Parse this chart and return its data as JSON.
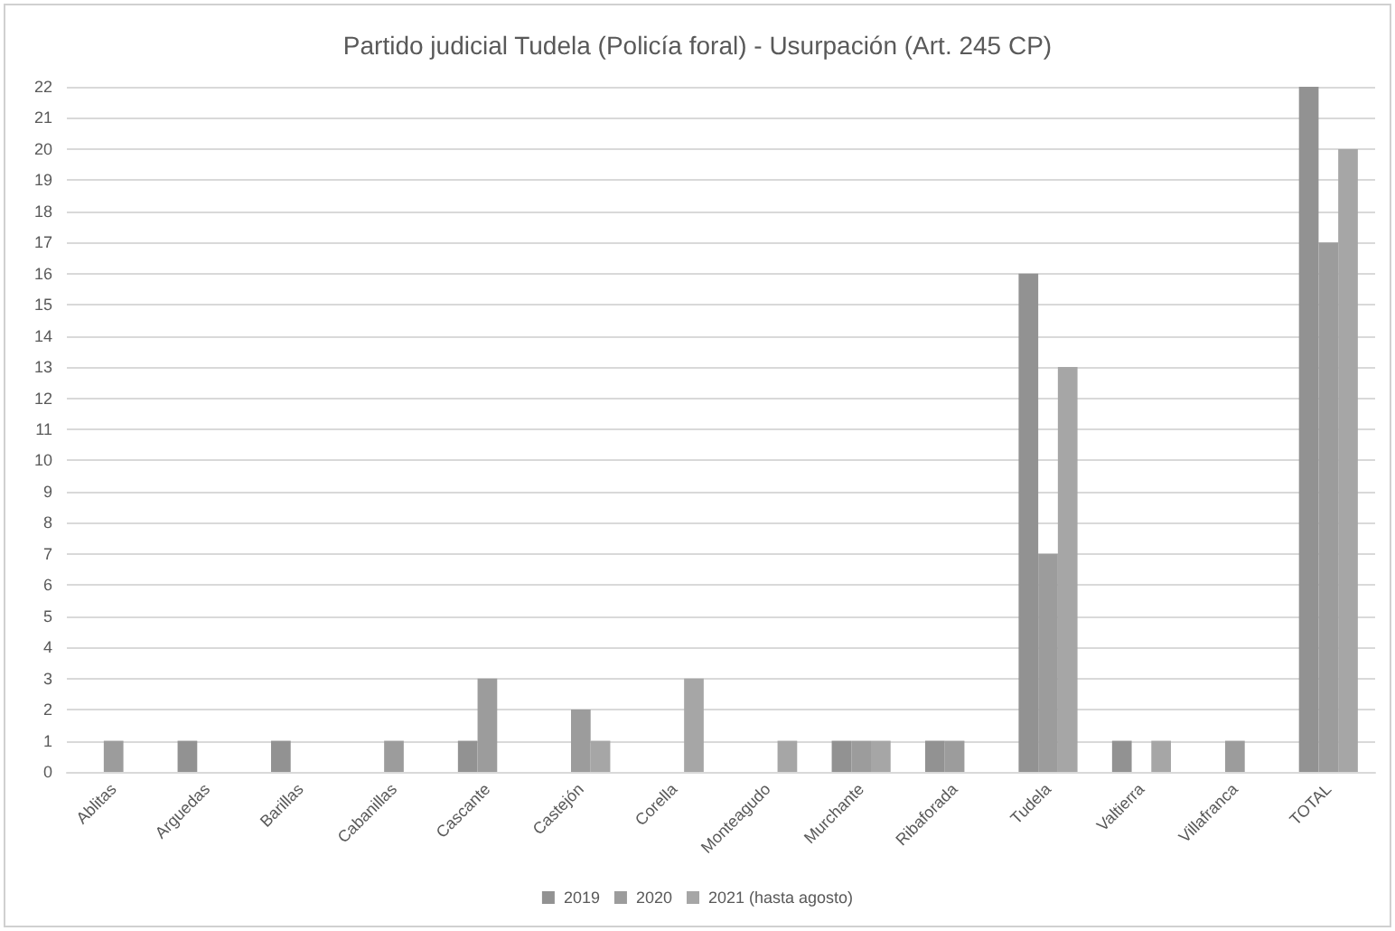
{
  "chart_data": {
    "type": "bar",
    "title": "Partido judicial Tudela (Policía foral) - Usurpación (Art. 245 CP)",
    "categories": [
      "Ablitas",
      "Arguedas",
      "Barillas",
      "Cabanillas",
      "Cascante",
      "Castejón",
      "Corella",
      "Monteagudo",
      "Murchante",
      "Ribaforada",
      "Tudela",
      "Valtierra",
      "Villafranca",
      "TOTAL"
    ],
    "series": [
      {
        "name": "2019",
        "color": "#929292",
        "values": [
          0,
          1,
          1,
          0,
          1,
          0,
          0,
          0,
          1,
          1,
          16,
          1,
          0,
          22
        ]
      },
      {
        "name": "2020",
        "color": "#9c9c9c",
        "values": [
          1,
          0,
          0,
          1,
          3,
          2,
          0,
          0,
          1,
          1,
          7,
          0,
          1,
          17
        ]
      },
      {
        "name": "2021 (hasta agosto)",
        "color": "#a6a6a6",
        "values": [
          0,
          0,
          0,
          0,
          0,
          1,
          3,
          1,
          1,
          0,
          13,
          1,
          0,
          20
        ]
      }
    ],
    "ylim": [
      0,
      22
    ],
    "yticks": [
      0,
      1,
      2,
      3,
      4,
      5,
      6,
      7,
      8,
      9,
      10,
      11,
      12,
      13,
      14,
      15,
      16,
      17,
      18,
      19,
      20,
      21,
      22
    ],
    "grid": "y",
    "legend": "bottom"
  }
}
